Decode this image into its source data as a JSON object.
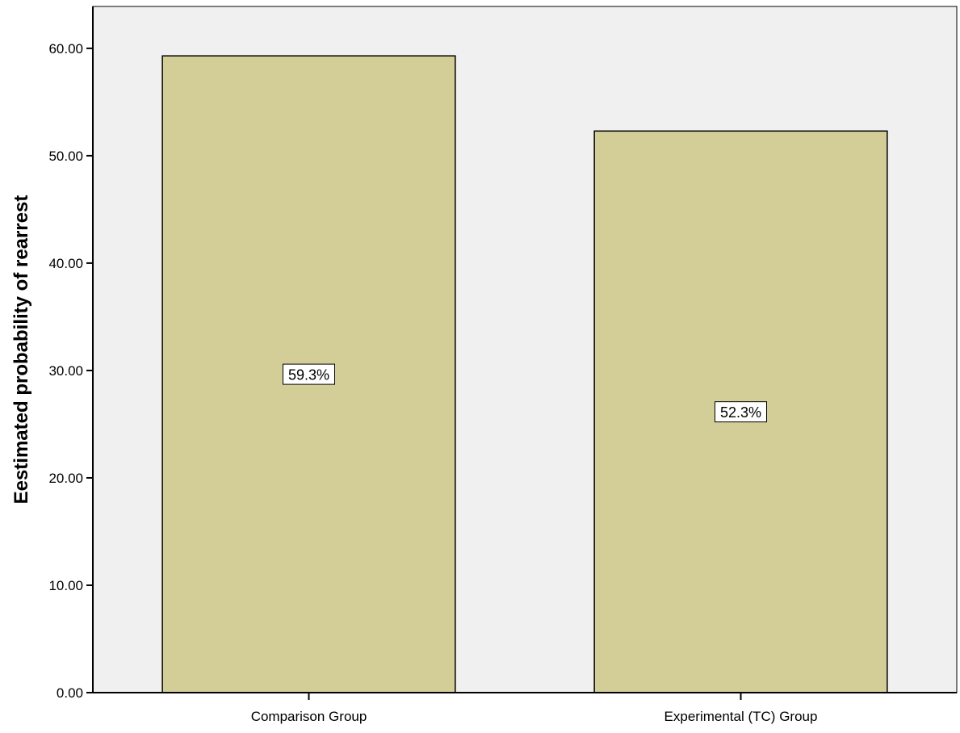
{
  "chart_data": {
    "type": "bar",
    "title": "",
    "xlabel": "",
    "ylabel": "Eestimated probability of rearrest",
    "categories": [
      "Comparison Group",
      "Experimental (TC) Group"
    ],
    "values": [
      59.3,
      52.3
    ],
    "data_labels": [
      "59.3%",
      "52.3%"
    ],
    "ylim": [
      0,
      63.9
    ],
    "yticks": [
      0,
      10,
      20,
      30,
      40,
      50,
      60
    ],
    "ytick_labels": [
      "0.00",
      "10.00",
      "20.00",
      "30.00",
      "40.00",
      "50.00",
      "60.00"
    ],
    "grid": false,
    "legend": "none",
    "colors": {
      "bar_fill": "#d3cd98",
      "plot_background": "#f0f0f0",
      "axis": "#000000",
      "label_box": "#ffffff"
    }
  }
}
